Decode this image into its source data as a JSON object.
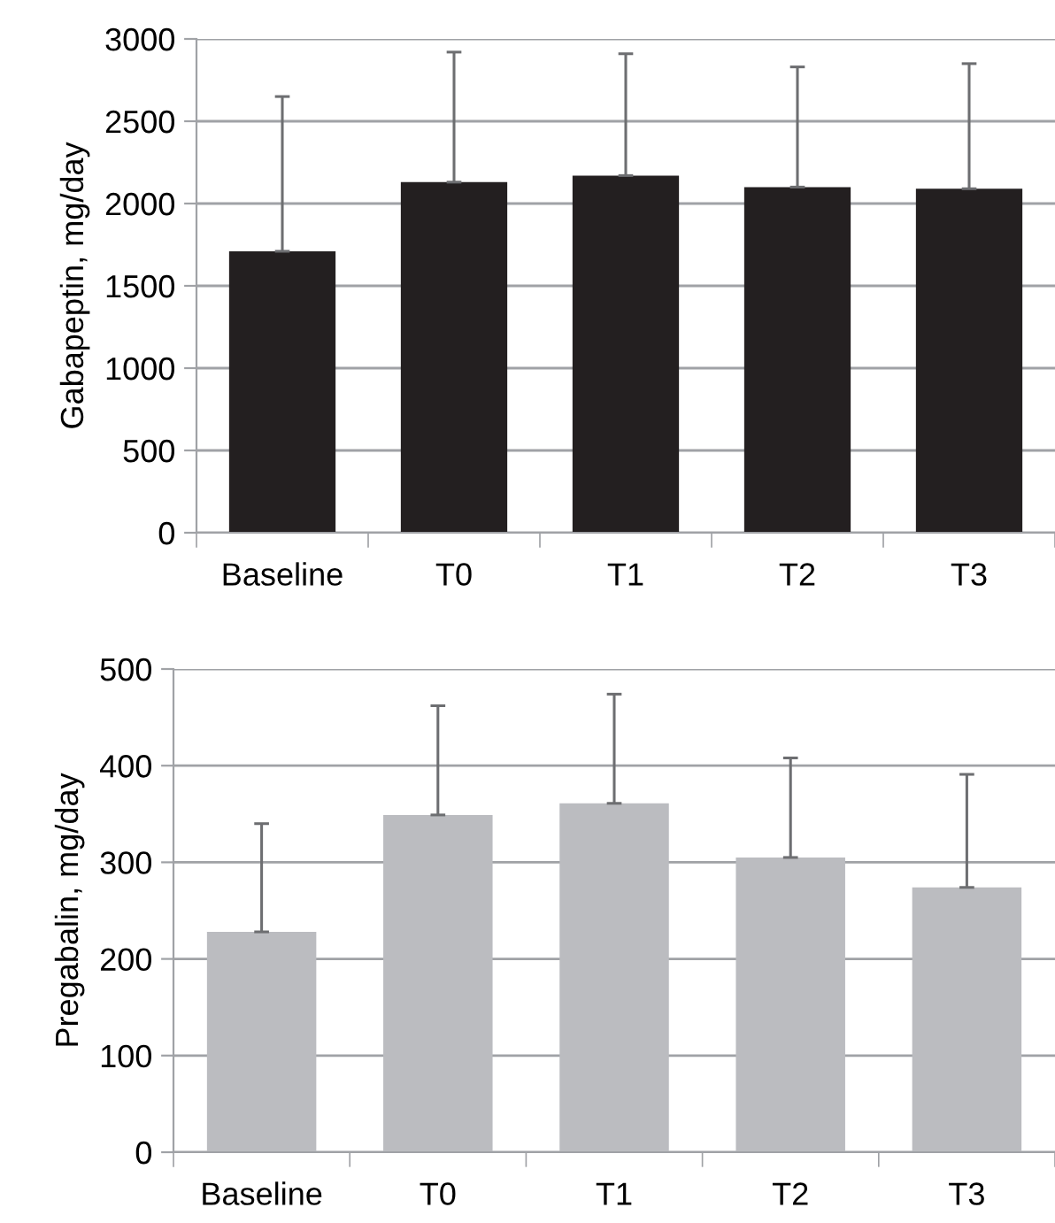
{
  "chart_data": [
    {
      "type": "bar",
      "ylabel": "Gabapeptin, mg/day",
      "categories": [
        "Baseline",
        "T0",
        "T1",
        "T2",
        "T3"
      ],
      "values": [
        1710,
        2130,
        2170,
        2100,
        2090
      ],
      "color": "#231f20",
      "errors": [
        [
          1710,
          2650
        ],
        [
          2130,
          2920
        ],
        [
          2170,
          2910
        ],
        [
          2100,
          2830
        ],
        [
          2090,
          2850
        ]
      ],
      "ylim": [
        0,
        3000
      ],
      "yticks": [
        0,
        500,
        1000,
        1500,
        2000,
        2500,
        3000
      ],
      "grid": "y"
    },
    {
      "type": "bar",
      "ylabel": "Pregabalin, mg/day",
      "categories": [
        "Baseline",
        "T0",
        "T1",
        "T2",
        "T3"
      ],
      "values": [
        228,
        349,
        361,
        305,
        274
      ],
      "color": "#bbbcc0",
      "errors": [
        [
          228,
          340
        ],
        [
          349,
          462
        ],
        [
          361,
          474
        ],
        [
          305,
          408
        ],
        [
          274,
          391
        ]
      ],
      "ylim": [
        0,
        500
      ],
      "yticks": [
        0,
        100,
        200,
        300,
        400,
        500
      ],
      "grid": "y"
    }
  ]
}
